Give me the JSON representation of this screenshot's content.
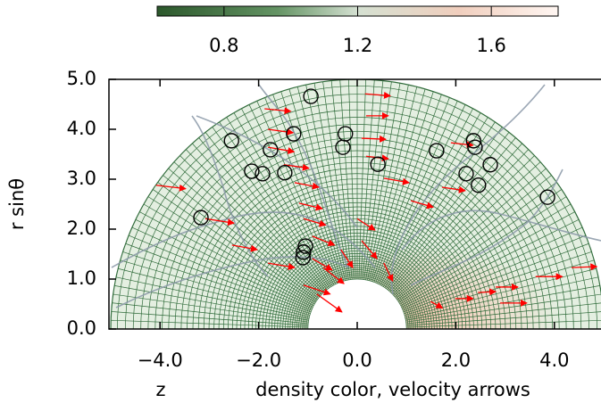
{
  "chart_data": {
    "type": "scatter",
    "xlabel": "z",
    "caption": "density color, velocity arrows",
    "ylabel": "r sinθ",
    "xlim": [
      -5,
      5
    ],
    "ylim": [
      0,
      5
    ],
    "xticks": [
      {
        "value": -4,
        "label": "−4.0"
      },
      {
        "value": -2,
        "label": "−2.0"
      },
      {
        "value": 0,
        "label": "0.0"
      },
      {
        "value": 2,
        "label": "2.0"
      },
      {
        "value": 4,
        "label": "4.0"
      }
    ],
    "yticks": [
      {
        "value": 0,
        "label": "0.0"
      },
      {
        "value": 1,
        "label": "1.0"
      },
      {
        "value": 2,
        "label": "2.0"
      },
      {
        "value": 3,
        "label": "3.0"
      },
      {
        "value": 4,
        "label": "4.0"
      },
      {
        "value": 5,
        "label": "5.0"
      }
    ],
    "colorbar": {
      "lim": [
        0.6,
        1.8
      ],
      "ticks": [
        0.8,
        1.2,
        1.6
      ]
    },
    "points": {
      "color": "#000000",
      "x": [
        -0.94,
        -2.55,
        -1.76,
        -1.29,
        -0.24,
        -0.29,
        0.42,
        -2.14,
        -1.92,
        -1.47,
        1.61,
        2.36,
        2.39,
        2.7,
        2.21,
        2.46,
        3.86,
        -3.17,
        -1.05,
        -1.09,
        -1.1
      ],
      "y": [
        4.66,
        3.77,
        3.59,
        3.91,
        3.91,
        3.64,
        3.3,
        3.16,
        3.11,
        3.13,
        3.57,
        3.77,
        3.64,
        3.29,
        3.11,
        2.88,
        2.64,
        2.23,
        1.66,
        1.54,
        1.43
      ]
    },
    "arrows": {
      "color": "#ff0000",
      "x": [
        0.16,
        -1.88,
        0.18,
        -1.81,
        0.09,
        -1.81,
        0.18,
        1.9,
        -1.49,
        -4.08,
        -1.27,
        0.54,
        1.72,
        -1.18,
        1.09,
        -3.08,
        -2.54,
        -1.09,
        -0.91,
        0,
        -1.81,
        -0.91,
        -0.69,
        -0.33,
        0.09,
        -1.09,
        -0.82,
        0.54,
        1.49,
        1.99,
        2.45,
        2.81,
        3.62,
        4.35,
        2.9
      ],
      "y": [
        4.71,
        4.41,
        4.27,
        4.0,
        3.82,
        3.64,
        3.46,
        3.73,
        3.29,
        2.88,
        2.93,
        3.02,
        2.84,
        2.52,
        2.57,
        2.21,
        1.68,
        2.21,
        1.86,
        2.21,
        1.32,
        1.41,
        1.23,
        1.59,
        1.77,
        0.88,
        0.7,
        1.32,
        0.55,
        0.61,
        0.73,
        0.84,
        1.05,
        1.23,
        0.52
      ],
      "dx": [
        0.51,
        0.53,
        0.45,
        0.51,
        0.49,
        0.53,
        0.45,
        0.45,
        0.51,
        0.6,
        0.49,
        0.51,
        0.47,
        0.47,
        0.45,
        0.58,
        0.51,
        0.45,
        0.45,
        0.36,
        0.54,
        0.4,
        0.42,
        0.24,
        0.31,
        0.54,
        0.51,
        0.18,
        0.24,
        0.36,
        0.36,
        0.45,
        0.54,
        0.51,
        0.54
      ],
      "dy": [
        -0.04,
        -0.05,
        0,
        -0.07,
        -0.02,
        -0.09,
        -0.05,
        -0.05,
        -0.07,
        -0.07,
        -0.09,
        -0.09,
        -0.07,
        -0.11,
        -0.13,
        -0.09,
        -0.09,
        -0.13,
        -0.18,
        -0.23,
        -0.09,
        -0.23,
        -0.32,
        -0.36,
        -0.36,
        -0.18,
        -0.36,
        -0.36,
        -0.13,
        0,
        0.02,
        0,
        0,
        0.02,
        0
      ]
    }
  }
}
